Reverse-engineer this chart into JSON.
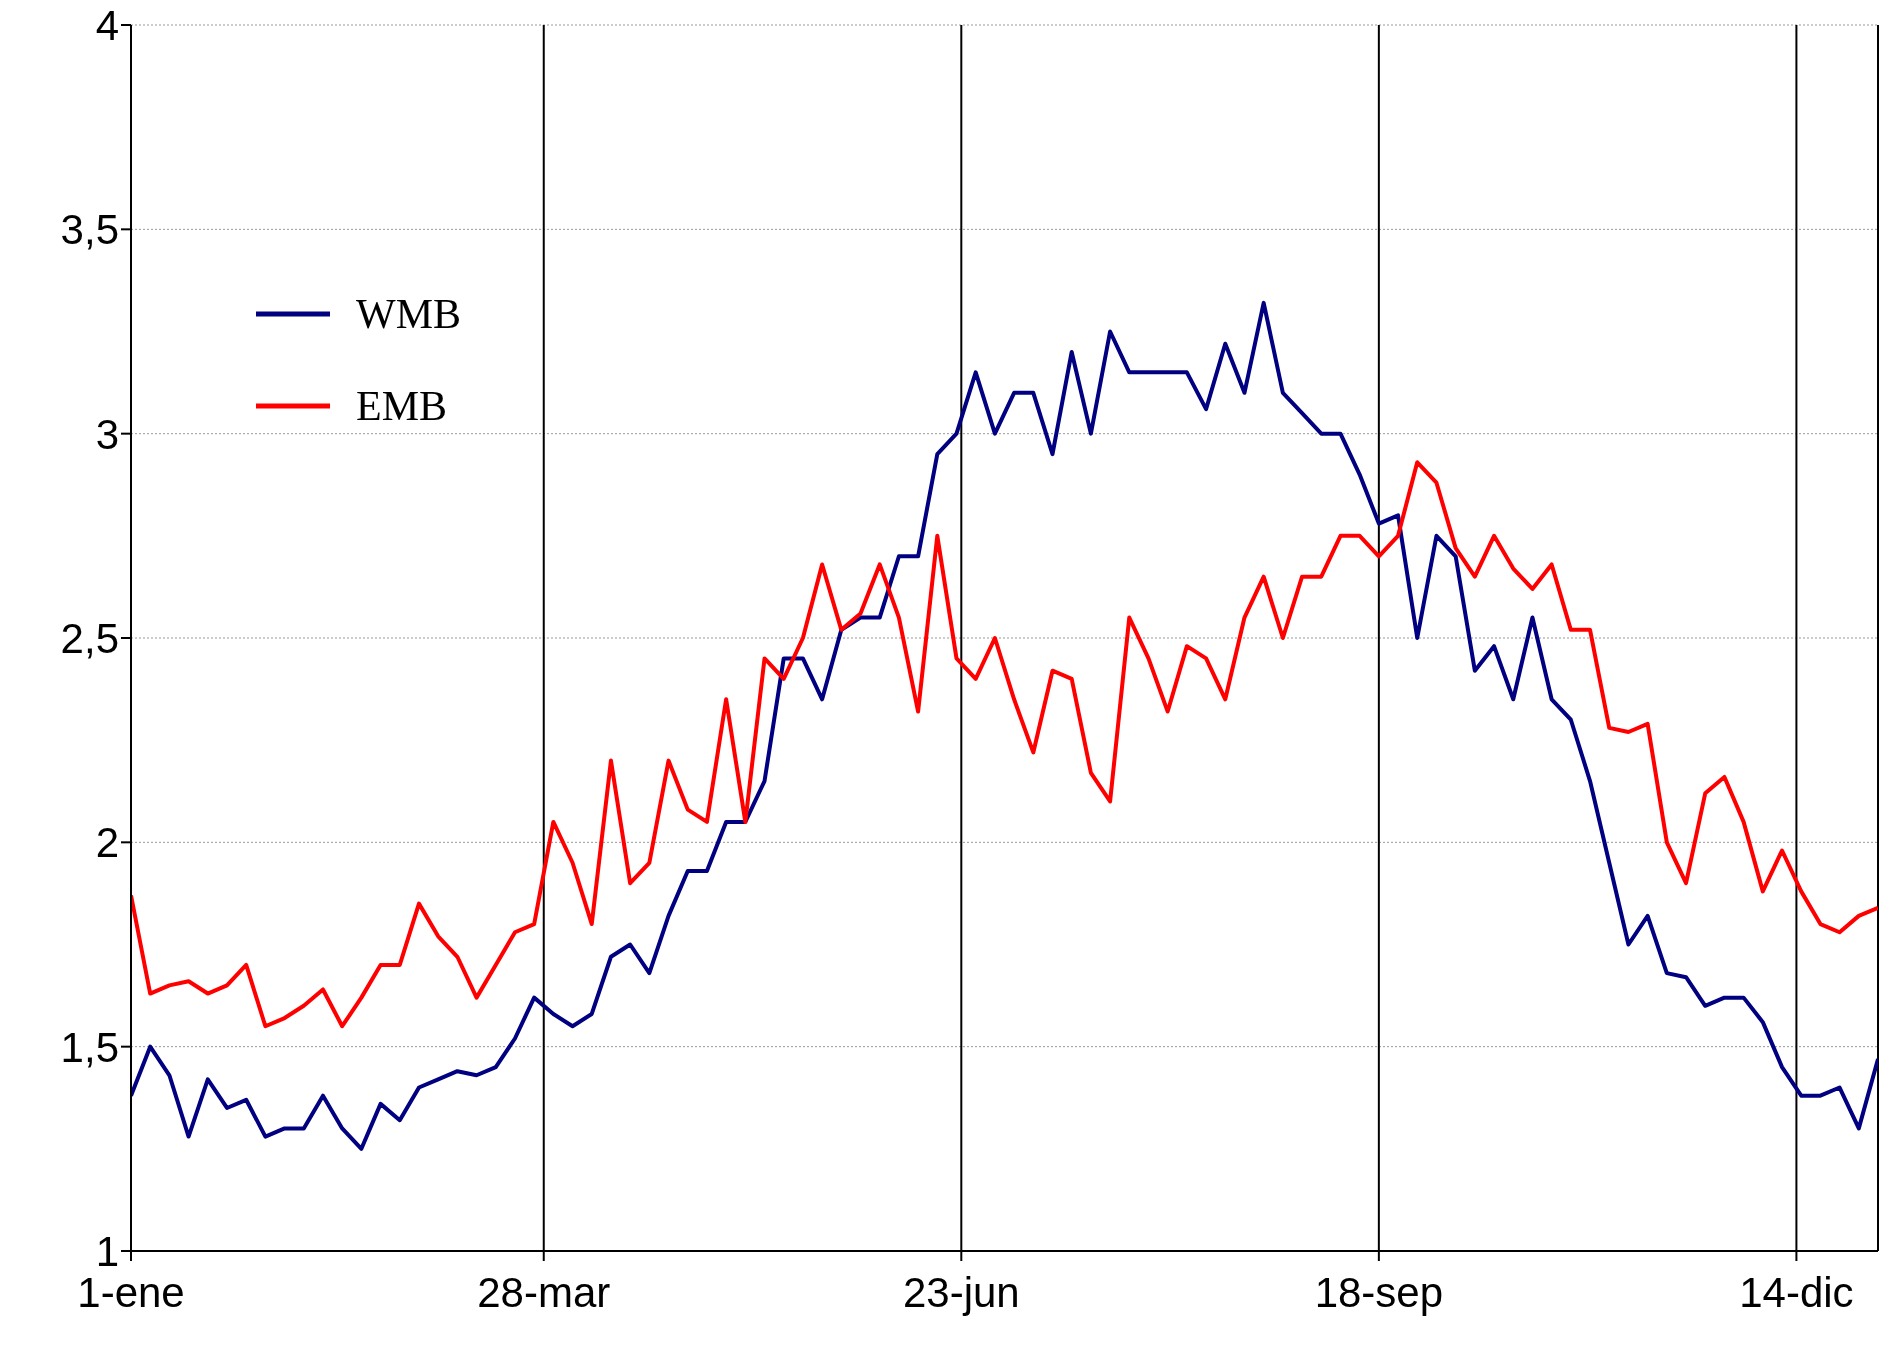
{
  "chart_data": {
    "type": "line",
    "x": [
      "--01-01",
      "--01-05",
      "--01-09",
      "--01-13",
      "--01-17",
      "--01-21",
      "--01-25",
      "--01-29",
      "--02-02",
      "--02-06",
      "--02-10",
      "--02-14",
      "--02-18",
      "--02-22",
      "--02-26",
      "--03-02",
      "--03-06",
      "--03-10",
      "--03-14",
      "--03-18",
      "--03-22",
      "--03-26",
      "--03-30",
      "--04-03",
      "--04-07",
      "--04-11",
      "--04-15",
      "--04-19",
      "--04-23",
      "--04-27",
      "--05-01",
      "--05-05",
      "--05-09",
      "--05-13",
      "--05-17",
      "--05-21",
      "--05-25",
      "--05-29",
      "--06-02",
      "--06-06",
      "--06-10",
      "--06-14",
      "--06-18",
      "--06-22",
      "--06-26",
      "--06-30",
      "--07-04",
      "--07-08",
      "--07-12",
      "--07-16",
      "--07-20",
      "--07-24",
      "--07-28",
      "--08-01",
      "--08-05",
      "--08-09",
      "--08-13",
      "--08-17",
      "--08-21",
      "--08-25",
      "--08-29",
      "--09-02",
      "--09-06",
      "--09-10",
      "--09-14",
      "--09-18",
      "--09-22",
      "--09-26",
      "--09-30",
      "--10-04",
      "--10-08",
      "--10-12",
      "--10-16",
      "--10-20",
      "--10-24",
      "--10-28",
      "--11-01",
      "--11-05",
      "--11-09",
      "--11-13",
      "--11-17",
      "--11-21",
      "--11-25",
      "--11-29",
      "--12-03",
      "--12-07",
      "--12-11",
      "--12-15",
      "--12-19",
      "--12-23",
      "--12-27",
      "--12-31"
    ],
    "series": [
      {
        "name": "WMB",
        "color": "#000080",
        "values": [
          1.38,
          1.5,
          1.43,
          1.28,
          1.42,
          1.35,
          1.37,
          1.28,
          1.3,
          1.3,
          1.38,
          1.3,
          1.25,
          1.36,
          1.32,
          1.4,
          1.42,
          1.44,
          1.43,
          1.45,
          1.52,
          1.62,
          1.58,
          1.55,
          1.58,
          1.72,
          1.75,
          1.68,
          1.82,
          1.93,
          1.93,
          2.05,
          2.05,
          2.15,
          2.45,
          2.45,
          2.35,
          2.52,
          2.55,
          2.55,
          2.7,
          2.7,
          2.95,
          3.0,
          3.15,
          3.0,
          3.1,
          3.1,
          2.95,
          3.2,
          3.0,
          3.25,
          3.15,
          3.15,
          3.15,
          3.15,
          3.06,
          3.22,
          3.1,
          3.32,
          3.1,
          3.05,
          3.0,
          3.0,
          2.9,
          2.78,
          2.8,
          2.5,
          2.75,
          2.7,
          2.42,
          2.48,
          2.35,
          2.55,
          2.35,
          2.3,
          2.15,
          1.95,
          1.75,
          1.82,
          1.68,
          1.67,
          1.6,
          1.62,
          1.62,
          1.56,
          1.45,
          1.38,
          1.38,
          1.4,
          1.3,
          1.47
        ]
      },
      {
        "name": "EMB",
        "color": "#ff0000",
        "values": [
          1.87,
          1.63,
          1.65,
          1.66,
          1.63,
          1.65,
          1.7,
          1.55,
          1.57,
          1.6,
          1.64,
          1.55,
          1.62,
          1.7,
          1.7,
          1.85,
          1.77,
          1.72,
          1.62,
          1.7,
          1.78,
          1.8,
          2.05,
          1.95,
          1.8,
          2.2,
          1.9,
          1.95,
          2.2,
          2.08,
          2.05,
          2.35,
          2.05,
          2.45,
          2.4,
          2.5,
          2.68,
          2.52,
          2.56,
          2.68,
          2.55,
          2.32,
          2.75,
          2.45,
          2.4,
          2.5,
          2.35,
          2.22,
          2.42,
          2.4,
          2.17,
          2.1,
          2.55,
          2.45,
          2.32,
          2.48,
          2.45,
          2.35,
          2.55,
          2.65,
          2.5,
          2.65,
          2.65,
          2.75,
          2.75,
          2.7,
          2.75,
          2.93,
          2.88,
          2.72,
          2.65,
          2.75,
          2.67,
          2.62,
          2.68,
          2.52,
          2.52,
          2.28,
          2.27,
          2.29,
          2.0,
          1.9,
          2.12,
          2.16,
          2.05,
          1.88,
          1.98,
          1.88,
          1.8,
          1.78,
          1.82,
          1.84
        ]
      }
    ],
    "xlim": [
      "--01-01",
      "--12-31"
    ],
    "xticks": [
      {
        "value": "--01-01",
        "label": "1-ene"
      },
      {
        "value": "--03-28",
        "label": "28-mar"
      },
      {
        "value": "--06-23",
        "label": "23-jun"
      },
      {
        "value": "--09-18",
        "label": "18-sep"
      },
      {
        "value": "--12-14",
        "label": "14-dic"
      }
    ],
    "ylim": [
      1,
      4
    ],
    "yticks": [
      1,
      {
        "value": 1.5,
        "label": "1,5"
      },
      2,
      {
        "value": 2.5,
        "label": "2,5"
      },
      3,
      {
        "value": 3.5,
        "label": "3,5"
      },
      4
    ],
    "grid": true,
    "legend": "top left",
    "marker": "none",
    "line_style": "solid"
  }
}
